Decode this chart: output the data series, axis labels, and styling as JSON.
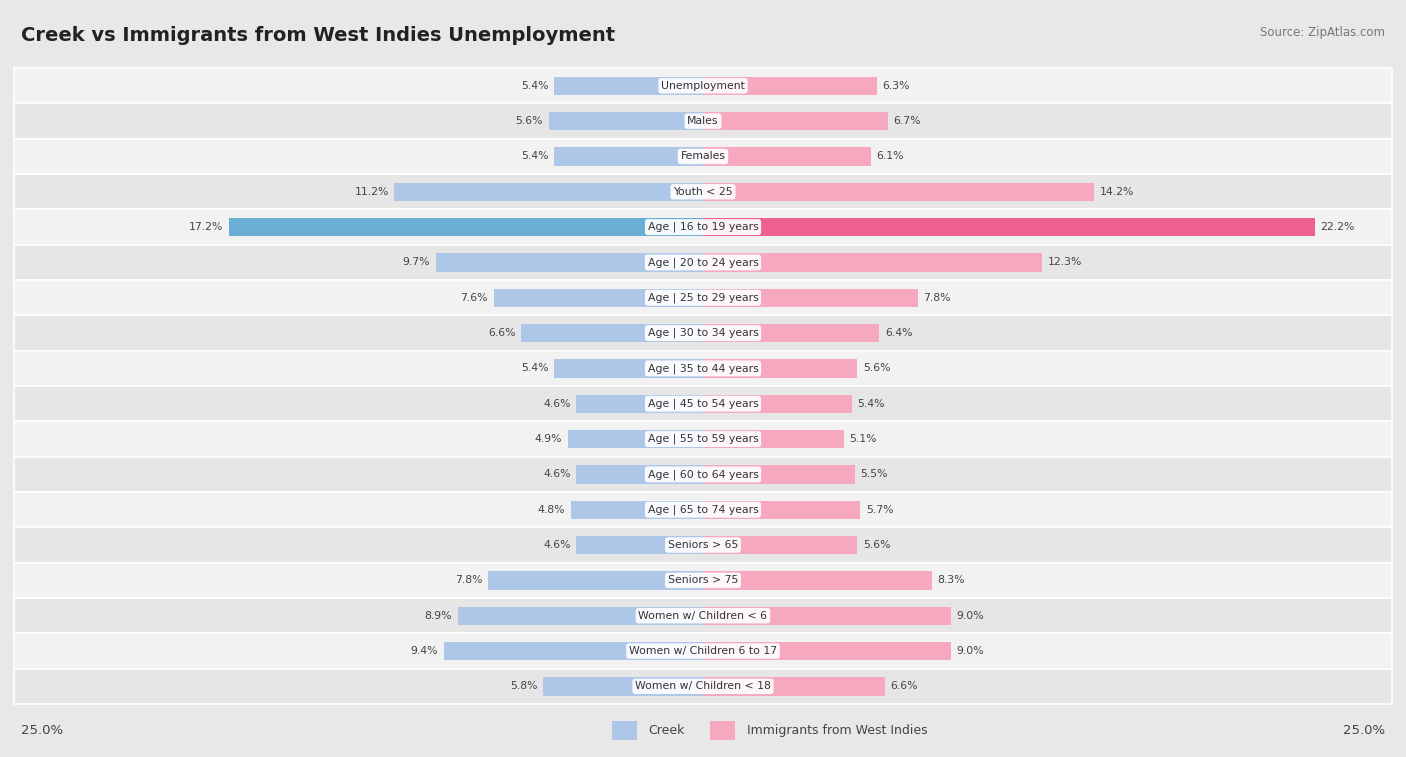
{
  "title": "Creek vs Immigrants from West Indies Unemployment",
  "source": "Source: ZipAtlas.com",
  "categories": [
    "Unemployment",
    "Males",
    "Females",
    "Youth < 25",
    "Age | 16 to 19 years",
    "Age | 20 to 24 years",
    "Age | 25 to 29 years",
    "Age | 30 to 34 years",
    "Age | 35 to 44 years",
    "Age | 45 to 54 years",
    "Age | 55 to 59 years",
    "Age | 60 to 64 years",
    "Age | 65 to 74 years",
    "Seniors > 65",
    "Seniors > 75",
    "Women w/ Children < 6",
    "Women w/ Children 6 to 17",
    "Women w/ Children < 18"
  ],
  "creek_values": [
    5.4,
    5.6,
    5.4,
    11.2,
    17.2,
    9.7,
    7.6,
    6.6,
    5.4,
    4.6,
    4.9,
    4.6,
    4.8,
    4.6,
    7.8,
    8.9,
    9.4,
    5.8
  ],
  "immigrants_values": [
    6.3,
    6.7,
    6.1,
    14.2,
    22.2,
    12.3,
    7.8,
    6.4,
    5.6,
    5.4,
    5.1,
    5.5,
    5.7,
    5.6,
    8.3,
    9.0,
    9.0,
    6.6
  ],
  "creek_color": "#aec6e8",
  "immigrants_color": "#f5a8be",
  "creek_dark_color": "#6aaed6",
  "immigrants_dark_color": "#ee6090",
  "max_value": 25.0,
  "bg_color": "#e8e8e8",
  "row_bg_light": "#f2f2f2",
  "row_bg_dark": "#e6e6e6",
  "title_color": "#222222",
  "label_color": "#555555",
  "value_color": "#444444"
}
